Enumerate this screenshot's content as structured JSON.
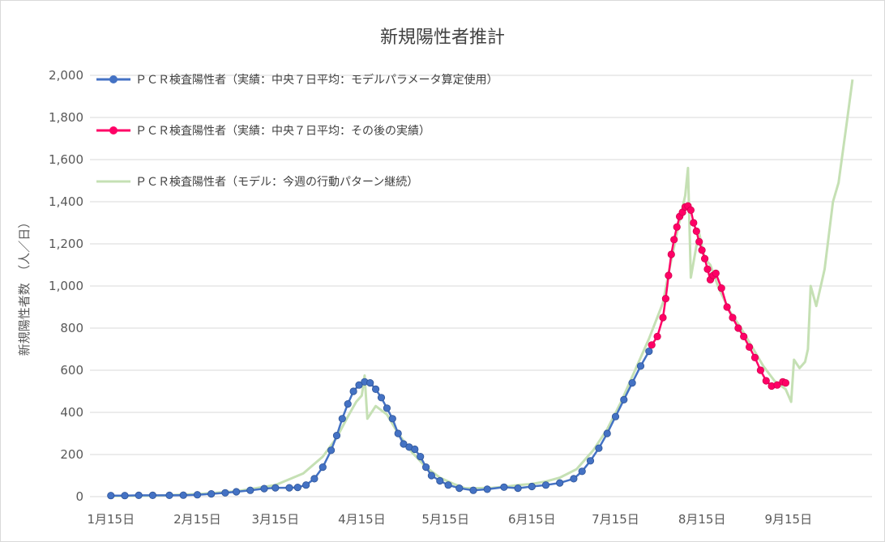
{
  "chart_data": {
    "type": "line",
    "title": "新規陽性者推計",
    "xlabel": "",
    "ylabel": "新規陽性者数　（人／日）",
    "ylim": [
      0,
      2000
    ],
    "yticks": [
      "0",
      "200",
      "400",
      "600",
      "800",
      "1,000",
      "1,200",
      "1,400",
      "1,600",
      "1,800",
      "2,000"
    ],
    "ytick_values": [
      0,
      200,
      400,
      600,
      800,
      1000,
      1200,
      1400,
      1600,
      1800,
      2000
    ],
    "xticks": [
      "1月15日",
      "2月15日",
      "3月15日",
      "4月15日",
      "5月15日",
      "6月15日",
      "7月15日",
      "8月15日",
      "9月15日"
    ],
    "xtick_dates": [
      "01-15",
      "02-15",
      "03-15",
      "04-15",
      "05-15",
      "06-15",
      "07-15",
      "08-15",
      "09-15"
    ],
    "xlim": [
      "01-15",
      "10-15"
    ],
    "grid": "horizontal",
    "legend": "top-left",
    "series": [
      {
        "name": "ＰＣＲ検査陽性者（実績：中央７日平均：モデルパラメータ算定使用）",
        "color": "#4472c4",
        "style": "line-markers",
        "points": [
          [
            "01-15",
            5
          ],
          [
            "01-20",
            5
          ],
          [
            "01-25",
            6
          ],
          [
            "01-30",
            6
          ],
          [
            "02-05",
            6
          ],
          [
            "02-10",
            7
          ],
          [
            "02-15",
            9
          ],
          [
            "02-20",
            13
          ],
          [
            "02-25",
            18
          ],
          [
            "03-01",
            23
          ],
          [
            "03-06",
            30
          ],
          [
            "03-11",
            38
          ],
          [
            "03-15",
            42
          ],
          [
            "03-20",
            42
          ],
          [
            "03-23",
            44
          ],
          [
            "03-26",
            55
          ],
          [
            "03-29",
            85
          ],
          [
            "04-01",
            140
          ],
          [
            "04-04",
            220
          ],
          [
            "04-06",
            290
          ],
          [
            "04-08",
            370
          ],
          [
            "04-10",
            440
          ],
          [
            "04-12",
            500
          ],
          [
            "04-14",
            530
          ],
          [
            "04-16",
            545
          ],
          [
            "04-18",
            540
          ],
          [
            "04-20",
            510
          ],
          [
            "04-22",
            470
          ],
          [
            "04-24",
            420
          ],
          [
            "04-26",
            370
          ],
          [
            "04-28",
            300
          ],
          [
            "04-30",
            250
          ],
          [
            "05-02",
            235
          ],
          [
            "05-04",
            225
          ],
          [
            "05-06",
            190
          ],
          [
            "05-08",
            140
          ],
          [
            "05-10",
            100
          ],
          [
            "05-13",
            75
          ],
          [
            "05-16",
            55
          ],
          [
            "05-20",
            40
          ],
          [
            "05-25",
            30
          ],
          [
            "05-30",
            35
          ],
          [
            "06-05",
            45
          ],
          [
            "06-10",
            40
          ],
          [
            "06-15",
            48
          ],
          [
            "06-20",
            55
          ],
          [
            "06-25",
            65
          ],
          [
            "06-30",
            85
          ],
          [
            "07-03",
            120
          ],
          [
            "07-06",
            170
          ],
          [
            "07-09",
            230
          ],
          [
            "07-12",
            300
          ],
          [
            "07-15",
            380
          ],
          [
            "07-18",
            460
          ],
          [
            "07-21",
            540
          ],
          [
            "07-24",
            620
          ],
          [
            "07-27",
            690
          ]
        ]
      },
      {
        "name": "ＰＣＲ検査陽性者（実績：中央７日平均：その後の実績）",
        "color": "#ff0066",
        "style": "line-markers",
        "points": [
          [
            "07-28",
            720
          ],
          [
            "07-30",
            760
          ],
          [
            "08-01",
            850
          ],
          [
            "08-02",
            940
          ],
          [
            "08-03",
            1050
          ],
          [
            "08-04",
            1150
          ],
          [
            "08-05",
            1220
          ],
          [
            "08-06",
            1280
          ],
          [
            "08-07",
            1330
          ],
          [
            "08-08",
            1350
          ],
          [
            "08-09",
            1375
          ],
          [
            "08-10",
            1380
          ],
          [
            "08-11",
            1360
          ],
          [
            "08-12",
            1300
          ],
          [
            "08-13",
            1260
          ],
          [
            "08-14",
            1210
          ],
          [
            "08-15",
            1170
          ],
          [
            "08-16",
            1130
          ],
          [
            "08-17",
            1080
          ],
          [
            "08-18",
            1030
          ],
          [
            "08-19",
            1050
          ],
          [
            "08-20",
            1060
          ],
          [
            "08-22",
            990
          ],
          [
            "08-24",
            900
          ],
          [
            "08-26",
            850
          ],
          [
            "08-28",
            800
          ],
          [
            "08-30",
            760
          ],
          [
            "09-01",
            710
          ],
          [
            "09-03",
            660
          ],
          [
            "09-05",
            600
          ],
          [
            "09-07",
            550
          ],
          [
            "09-09",
            525
          ],
          [
            "09-11",
            530
          ],
          [
            "09-13",
            545
          ],
          [
            "09-14",
            540
          ]
        ]
      },
      {
        "name": "ＰＣＲ検査陽性者（モデル：今週の行動パターン継続）",
        "color": "#c5e0b4",
        "style": "line",
        "points": [
          [
            "01-15",
            3
          ],
          [
            "02-01",
            5
          ],
          [
            "02-15",
            12
          ],
          [
            "03-01",
            25
          ],
          [
            "03-15",
            55
          ],
          [
            "03-25",
            110
          ],
          [
            "04-01",
            190
          ],
          [
            "04-06",
            280
          ],
          [
            "04-10",
            380
          ],
          [
            "04-13",
            450
          ],
          [
            "04-15",
            480
          ],
          [
            "04-16",
            575
          ],
          [
            "04-17",
            370
          ],
          [
            "04-20",
            430
          ],
          [
            "04-24",
            390
          ],
          [
            "04-28",
            300
          ],
          [
            "05-03",
            210
          ],
          [
            "05-08",
            140
          ],
          [
            "05-13",
            90
          ],
          [
            "05-18",
            60
          ],
          [
            "05-22",
            40
          ],
          [
            "05-26",
            40
          ],
          [
            "06-01",
            42
          ],
          [
            "06-06",
            48
          ],
          [
            "06-10",
            55
          ],
          [
            "06-15",
            60
          ],
          [
            "06-20",
            72
          ],
          [
            "06-25",
            90
          ],
          [
            "07-01",
            130
          ],
          [
            "07-07",
            220
          ],
          [
            "07-12",
            320
          ],
          [
            "07-17",
            450
          ],
          [
            "07-22",
            600
          ],
          [
            "07-27",
            750
          ],
          [
            "08-01",
            920
          ],
          [
            "08-03",
            1060
          ],
          [
            "08-06",
            1250
          ],
          [
            "08-09",
            1430
          ],
          [
            "08-10",
            1560
          ],
          [
            "08-11",
            1040
          ],
          [
            "08-13",
            1190
          ],
          [
            "08-14",
            1250
          ],
          [
            "08-16",
            1130
          ],
          [
            "08-18",
            1100
          ],
          [
            "08-21",
            990
          ],
          [
            "08-25",
            880
          ],
          [
            "08-29",
            800
          ],
          [
            "09-02",
            710
          ],
          [
            "09-06",
            620
          ],
          [
            "09-10",
            550
          ],
          [
            "09-14",
            510
          ],
          [
            "09-16",
            450
          ],
          [
            "09-17",
            650
          ],
          [
            "09-19",
            610
          ],
          [
            "09-21",
            640
          ],
          [
            "09-22",
            700
          ],
          [
            "09-23",
            1000
          ],
          [
            "09-25",
            905
          ],
          [
            "09-28",
            1080
          ],
          [
            "10-01",
            1400
          ],
          [
            "10-03",
            1490
          ],
          [
            "10-06",
            1780
          ],
          [
            "10-08",
            1980
          ]
        ]
      }
    ]
  }
}
